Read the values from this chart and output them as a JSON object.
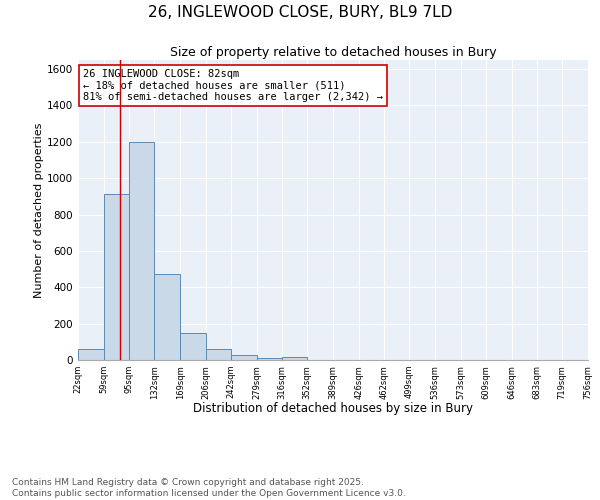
{
  "title1": "26, INGLEWOOD CLOSE, BURY, BL9 7LD",
  "title2": "Size of property relative to detached houses in Bury",
  "xlabel": "Distribution of detached houses by size in Bury",
  "ylabel": "Number of detached properties",
  "bin_edges": [
    22,
    59,
    95,
    132,
    169,
    206,
    242,
    279,
    316,
    352,
    389,
    426,
    462,
    499,
    536,
    573,
    609,
    646,
    683,
    719,
    756
  ],
  "bar_heights": [
    59,
    911,
    1200,
    475,
    150,
    60,
    28,
    10,
    18,
    0,
    0,
    0,
    0,
    0,
    0,
    0,
    0,
    0,
    0,
    0
  ],
  "bar_color": "#c9d9e8",
  "bar_edge_color": "#5a8ab5",
  "property_line_x": 82,
  "property_line_color": "#cc0000",
  "annotation_text": "26 INGLEWOOD CLOSE: 82sqm\n← 18% of detached houses are smaller (511)\n81% of semi-detached houses are larger (2,342) →",
  "annotation_box_color": "#ffffff",
  "annotation_box_edge_color": "#cc0000",
  "ylim": [
    0,
    1650
  ],
  "yticks": [
    0,
    200,
    400,
    600,
    800,
    1000,
    1200,
    1400,
    1600
  ],
  "background_color": "#eaf0f8",
  "grid_color": "#ffffff",
  "footer_text": "Contains HM Land Registry data © Crown copyright and database right 2025.\nContains public sector information licensed under the Open Government Licence v3.0.",
  "title1_fontsize": 11,
  "title2_fontsize": 9,
  "annotation_fontsize": 7.5,
  "footer_fontsize": 6.5,
  "ylabel_fontsize": 8,
  "xlabel_fontsize": 8.5
}
